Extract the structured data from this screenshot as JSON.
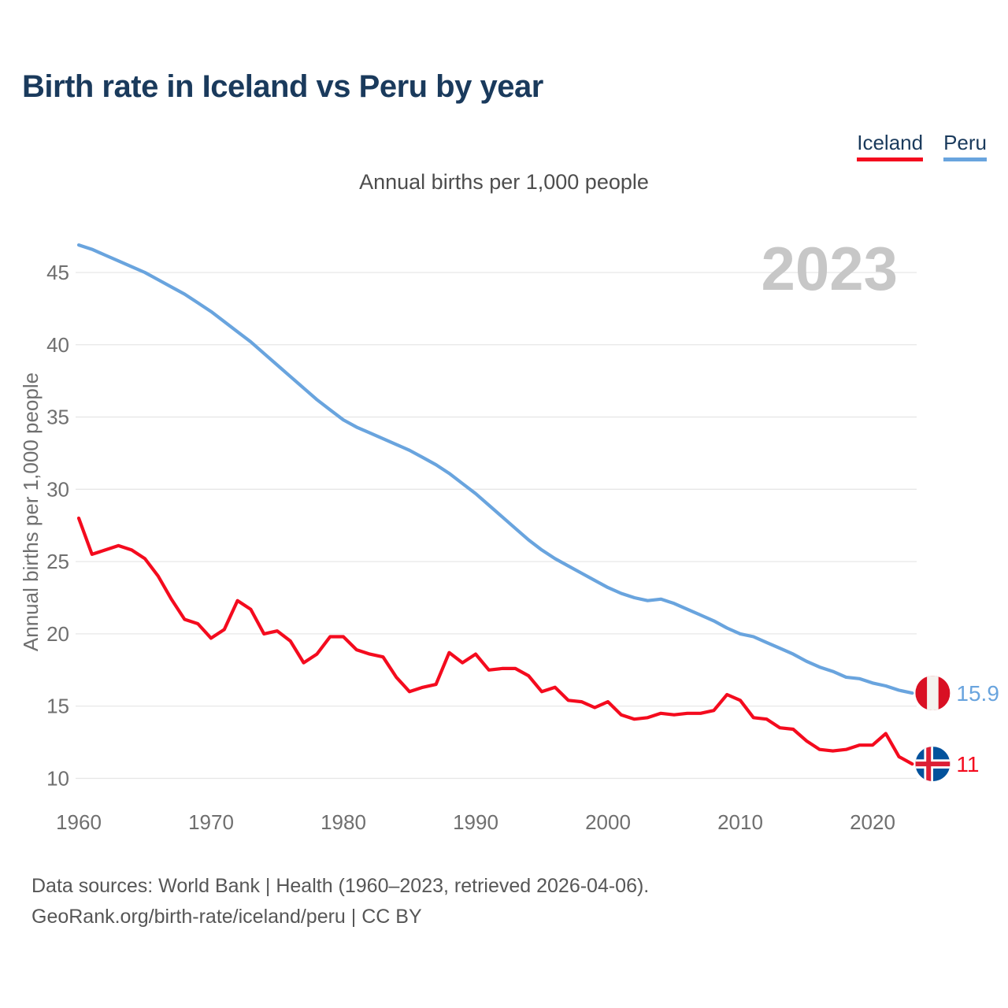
{
  "title": "Birth rate in Iceland vs Peru by year",
  "legend": [
    {
      "label": "Iceland",
      "color": "#f40b1e"
    },
    {
      "label": "Peru",
      "color": "#69a4de"
    }
  ],
  "subtitle": "Annual births per 1,000 people",
  "watermark": "2023",
  "footer": {
    "line1": "Data sources: World Bank | Health (1960–2023, retrieved 2026-04-06).",
    "line2": "GeoRank.org/birth-rate/iceland/peru | CC BY"
  },
  "chart_data": {
    "type": "line",
    "title": "Annual births per 1,000 people",
    "xlabel": "",
    "ylabel": "Annual births per 1,000 people",
    "grid": "horizontal",
    "xticks": [
      1960,
      1970,
      1980,
      1990,
      2000,
      2010,
      2020
    ],
    "yticks": [
      10,
      15,
      20,
      25,
      30,
      35,
      40,
      45
    ],
    "ylim": [
      8.8,
      47.6
    ],
    "xlim": [
      1960,
      2023
    ],
    "years": [
      1960,
      1961,
      1962,
      1963,
      1964,
      1965,
      1966,
      1967,
      1968,
      1969,
      1970,
      1971,
      1972,
      1973,
      1974,
      1975,
      1976,
      1977,
      1978,
      1979,
      1980,
      1981,
      1982,
      1983,
      1984,
      1985,
      1986,
      1987,
      1988,
      1989,
      1990,
      1991,
      1992,
      1993,
      1994,
      1995,
      1996,
      1997,
      1998,
      1999,
      2000,
      2001,
      2002,
      2003,
      2004,
      2005,
      2006,
      2007,
      2008,
      2009,
      2010,
      2011,
      2012,
      2013,
      2014,
      2015,
      2016,
      2017,
      2018,
      2019,
      2020,
      2021,
      2022,
      2023
    ],
    "series": [
      {
        "name": "Iceland",
        "color": "#f40b1e",
        "end_label": "11",
        "end_value": 11,
        "flag": "iceland",
        "values": [
          28.0,
          25.5,
          25.8,
          26.1,
          25.8,
          25.2,
          24.0,
          22.4,
          21.0,
          20.7,
          19.7,
          20.3,
          22.3,
          21.7,
          20.0,
          20.2,
          19.5,
          18.0,
          18.6,
          19.8,
          19.8,
          18.9,
          18.6,
          18.4,
          17.0,
          16.0,
          16.3,
          16.5,
          18.7,
          18.0,
          18.6,
          17.5,
          17.6,
          17.6,
          17.1,
          16.0,
          16.3,
          15.4,
          15.3,
          14.9,
          15.3,
          14.4,
          14.1,
          14.2,
          14.5,
          14.4,
          14.5,
          14.5,
          14.7,
          15.8,
          15.4,
          14.2,
          14.1,
          13.5,
          13.4,
          12.6,
          12.0,
          11.9,
          12.0,
          12.3,
          12.3,
          13.1,
          11.5,
          11.0
        ]
      },
      {
        "name": "Peru",
        "color": "#69a4de",
        "end_label": "15.9",
        "end_value": 15.9,
        "flag": "peru",
        "values": [
          46.9,
          46.6,
          46.2,
          45.8,
          45.4,
          45.0,
          44.5,
          44.0,
          43.5,
          42.9,
          42.3,
          41.6,
          40.9,
          40.2,
          39.4,
          38.6,
          37.8,
          37.0,
          36.2,
          35.5,
          34.8,
          34.3,
          33.9,
          33.5,
          33.1,
          32.7,
          32.2,
          31.7,
          31.1,
          30.4,
          29.7,
          28.9,
          28.1,
          27.3,
          26.5,
          25.8,
          25.2,
          24.7,
          24.2,
          23.7,
          23.2,
          22.8,
          22.5,
          22.3,
          22.4,
          22.1,
          21.7,
          21.3,
          20.9,
          20.4,
          20.0,
          19.8,
          19.4,
          19.0,
          18.6,
          18.1,
          17.7,
          17.4,
          17.0,
          16.9,
          16.6,
          16.4,
          16.1,
          15.9
        ]
      }
    ],
    "flag_colors": {
      "peru_red": "#d91023",
      "iceland_blue": "#02529c",
      "iceland_cross_red": "#dc1e35"
    }
  }
}
